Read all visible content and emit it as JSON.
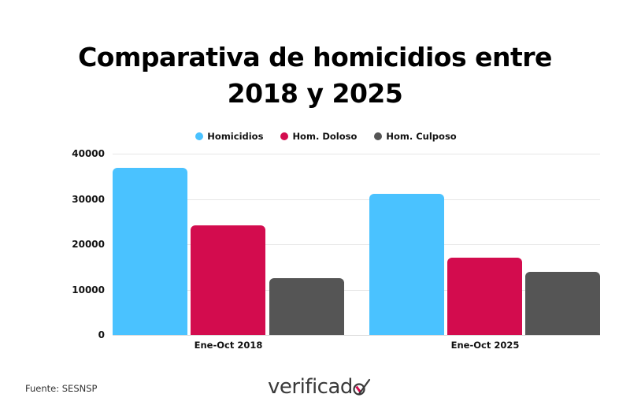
{
  "title": {
    "line1": "Comparativa de homicidios entre",
    "line2": "2018 y 2025"
  },
  "legend": [
    {
      "label": "Homicidios",
      "color": "#4AC2FF"
    },
    {
      "label": "Hom. Doloso",
      "color": "#D30C4E"
    },
    {
      "label": "Hom. Culposo",
      "color": "#555555"
    }
  ],
  "y_axis": {
    "ticks": [
      "0",
      "10000",
      "20000",
      "30000",
      "40000"
    ]
  },
  "x_axis": {
    "categories": [
      "Ene-Oct 2018",
      "Ene-Oct 2025"
    ]
  },
  "footer": {
    "source": "Fuente: SESNSP",
    "logo_text": "verificad",
    "logo_icon": "check-o-icon"
  },
  "chart_data": {
    "type": "bar",
    "title": "Comparativa de homicidios entre 2018 y 2025",
    "xlabel": "",
    "ylabel": "",
    "categories": [
      "Ene-Oct 2018",
      "Ene-Oct 2025"
    ],
    "series": [
      {
        "name": "Homicidios",
        "color": "#4AC2FF",
        "values": [
          36800,
          31100
        ]
      },
      {
        "name": "Hom. Doloso",
        "color": "#D30C4E",
        "values": [
          24200,
          17100
        ]
      },
      {
        "name": "Hom. Culposo",
        "color": "#555555",
        "values": [
          12600,
          13900
        ]
      }
    ],
    "ylim": [
      0,
      40000
    ],
    "yticks": [
      0,
      10000,
      20000,
      30000,
      40000
    ],
    "grid": true,
    "legend_position": "top"
  }
}
